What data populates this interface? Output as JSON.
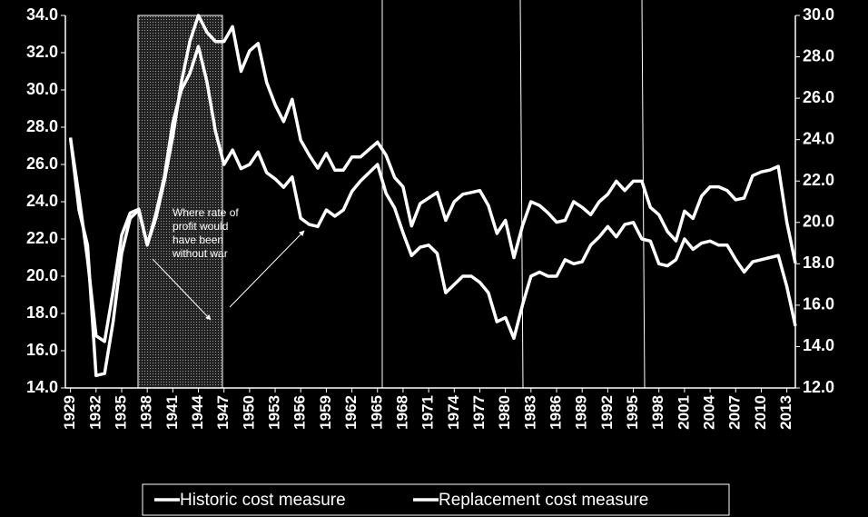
{
  "chart_data": {
    "type": "line",
    "x": [
      1929,
      1930,
      1931,
      1932,
      1933,
      1934,
      1935,
      1936,
      1937,
      1938,
      1939,
      1940,
      1941,
      1942,
      1943,
      1944,
      1945,
      1946,
      1947,
      1948,
      1949,
      1950,
      1951,
      1952,
      1953,
      1954,
      1955,
      1956,
      1957,
      1958,
      1959,
      1960,
      1961,
      1962,
      1963,
      1964,
      1965,
      1966,
      1967,
      1968,
      1969,
      1970,
      1971,
      1972,
      1973,
      1974,
      1975,
      1976,
      1977,
      1978,
      1979,
      1980,
      1981,
      1982,
      1983,
      1984,
      1985,
      1986,
      1987,
      1988,
      1989,
      1990,
      1991,
      1992,
      1993,
      1994,
      1995,
      1996,
      1997,
      1998,
      1999,
      2000,
      2001,
      2002,
      2003,
      2004,
      2005,
      2006,
      2007,
      2008,
      2009,
      2010,
      2011,
      2012,
      2013,
      2014
    ],
    "xlim": [
      1928.4,
      2014
    ],
    "xticks": [
      1929,
      1932,
      1935,
      1938,
      1941,
      1944,
      1947,
      1950,
      1953,
      1956,
      1959,
      1962,
      1965,
      1968,
      1971,
      1974,
      1977,
      1980,
      1983,
      1986,
      1989,
      1992,
      1995,
      1998,
      2001,
      2004,
      2007,
      2010,
      2013
    ],
    "series": [
      {
        "name": "Historic cost measure",
        "color": "#ffffff",
        "values": [
          27.4,
          24.3,
          20.9,
          16.8,
          16.5,
          19.2,
          22.2,
          23.4,
          23.6,
          21.7,
          23.1,
          25.1,
          27.5,
          30.4,
          32.6,
          34.0,
          33.1,
          32.6,
          32.6,
          33.4,
          31.0,
          32.1,
          32.5,
          30.4,
          29.2,
          28.3,
          29.5,
          27.3,
          26.5,
          25.8,
          26.6,
          25.7,
          25.7,
          26.4,
          26.4,
          26.8,
          27.2,
          26.5,
          25.3,
          24.8,
          22.7,
          23.9,
          24.2,
          24.5,
          23.0,
          24.0,
          24.4,
          24.5,
          24.6,
          23.8,
          22.3,
          23.0,
          21.0,
          22.7,
          24.0,
          23.8,
          23.4,
          22.9,
          23.0,
          24.0,
          23.7,
          23.3,
          24.0,
          24.4,
          25.1,
          24.6,
          25.1,
          25.1,
          23.7,
          23.3,
          22.4,
          21.9,
          23.5,
          23.1,
          24.3,
          24.8,
          24.8,
          24.6,
          24.1,
          24.2,
          25.4,
          25.6,
          25.7,
          25.9,
          22.9,
          20.7
        ]
      },
      {
        "name": "Replacement cost measure",
        "color": "#ffffff",
        "axis": "y2",
        "values": [
          24.1,
          20.6,
          18.9,
          12.6,
          12.7,
          15.2,
          18.5,
          20.2,
          20.6,
          18.9,
          20.4,
          22.2,
          24.8,
          26.4,
          27.2,
          28.5,
          26.8,
          24.4,
          22.8,
          23.5,
          22.6,
          22.8,
          23.4,
          22.4,
          22.1,
          21.7,
          22.2,
          20.2,
          19.9,
          19.8,
          20.6,
          20.3,
          20.6,
          21.5,
          22.0,
          22.4,
          22.8,
          21.4,
          20.7,
          19.5,
          18.4,
          18.8,
          18.9,
          18.5,
          16.6,
          17.0,
          17.4,
          17.4,
          17.1,
          16.6,
          15.2,
          15.4,
          14.4,
          16.0,
          17.4,
          17.6,
          17.4,
          17.4,
          18.2,
          18.0,
          18.1,
          18.9,
          19.3,
          19.8,
          19.3,
          19.9,
          20.0,
          19.2,
          19.1,
          18.0,
          17.9,
          18.2,
          19.2,
          18.7,
          19.0,
          19.1,
          18.9,
          18.9,
          18.2,
          17.6,
          18.1,
          18.2,
          18.3,
          18.4,
          16.9,
          15.0
        ]
      }
    ],
    "ylim": [
      14,
      34
    ],
    "yticks": [
      {
        "value": 14,
        "label": "14.0"
      },
      {
        "value": 16,
        "label": "16.0"
      },
      {
        "value": 18,
        "label": "18.0"
      },
      {
        "value": 20,
        "label": "20.0"
      },
      {
        "value": 22,
        "label": "22.0"
      },
      {
        "value": 24,
        "label": "24.0"
      },
      {
        "value": 26,
        "label": "26.0"
      },
      {
        "value": 28,
        "label": "28.0"
      },
      {
        "value": 30,
        "label": "30.0"
      },
      {
        "value": 32,
        "label": "32.0"
      },
      {
        "value": 34,
        "label": "34.0"
      }
    ],
    "y2lim": [
      12,
      30
    ],
    "y2ticks": [
      {
        "value": 12,
        "label": "12.0"
      },
      {
        "value": 14,
        "label": "14.0"
      },
      {
        "value": 16,
        "label": "16.0"
      },
      {
        "value": 18,
        "label": "18.0"
      },
      {
        "value": 20,
        "label": "20.0"
      },
      {
        "value": 22,
        "label": "22.0"
      },
      {
        "value": 24,
        "label": "24.0"
      },
      {
        "value": 26,
        "label": "26.0"
      },
      {
        "value": 28,
        "label": "28.0"
      },
      {
        "value": 30,
        "label": "30.0"
      }
    ],
    "annotation": [
      "Where rate of",
      "profit would",
      "have been",
      "without war"
    ],
    "legend": "bottom"
  }
}
